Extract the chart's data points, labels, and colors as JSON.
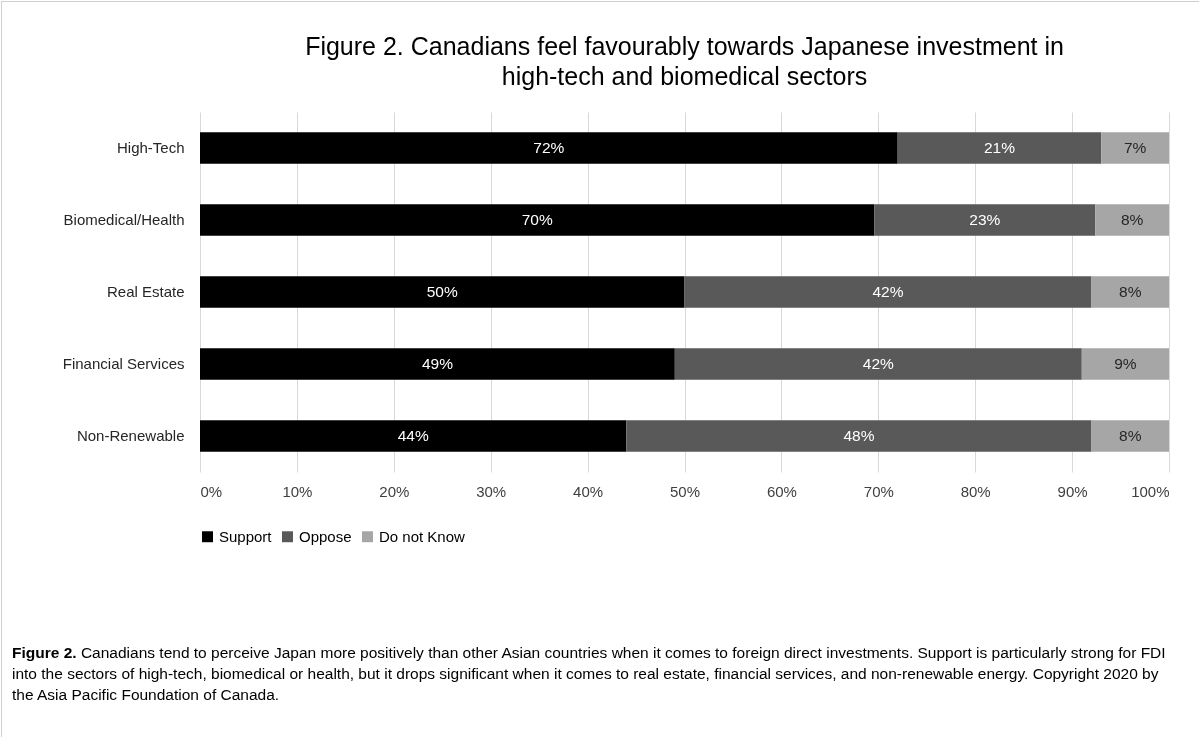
{
  "chart_data": {
    "type": "bar",
    "orientation": "horizontal",
    "stacked": true,
    "title": "Figure 2. Canadians feel favourably towards Japanese investment in high-tech and biomedical sectors",
    "categories": [
      "High-Tech",
      "Biomedical/Health",
      "Real Estate",
      "Financial Services",
      "Non-Renewable"
    ],
    "series": [
      {
        "name": "Support",
        "color": "#000000",
        "values": [
          72,
          69.6,
          50,
          49,
          44
        ],
        "value_labels": [
          "72%",
          "70%",
          "50%",
          "49%",
          "44%"
        ]
      },
      {
        "name": "Oppose",
        "color": "#595959",
        "values": [
          21,
          22.8,
          42,
          42,
          48
        ],
        "value_labels": [
          "21%",
          "23%",
          "42%",
          "42%",
          "48%"
        ]
      },
      {
        "name": "Do not Know",
        "color": "#a6a6a6",
        "values": [
          7,
          7.6,
          8,
          9,
          8
        ],
        "value_labels": [
          "7%",
          "8%",
          "8%",
          "9%",
          "8%"
        ]
      }
    ],
    "xlim": [
      0,
      100
    ],
    "xticks": [
      {
        "value": 0,
        "label": "0%"
      },
      {
        "value": 10,
        "label": "10%"
      },
      {
        "value": 20,
        "label": "20%"
      },
      {
        "value": 30,
        "label": "30%"
      },
      {
        "value": 40,
        "label": "40%"
      },
      {
        "value": 50,
        "label": "50%"
      },
      {
        "value": 60,
        "label": "60%"
      },
      {
        "value": 70,
        "label": "70%"
      },
      {
        "value": 80,
        "label": "80%"
      },
      {
        "value": 90,
        "label": "90%"
      },
      {
        "value": 100,
        "label": "100%"
      }
    ],
    "grid": "x",
    "legend": "bottom",
    "annotations": [
      "Figure 2. Canadians tend to perceive Japan more positively than other Asian countries when it comes to foreign direct investments. Support is particularly strong for FDI into the sectors of high-tech, biomedical or health, but it drops significant when it comes to real estate, financial services, and non-renewable energy. Copyright 2020 by the Asia Pacific Foundation of Canada."
    ]
  }
}
